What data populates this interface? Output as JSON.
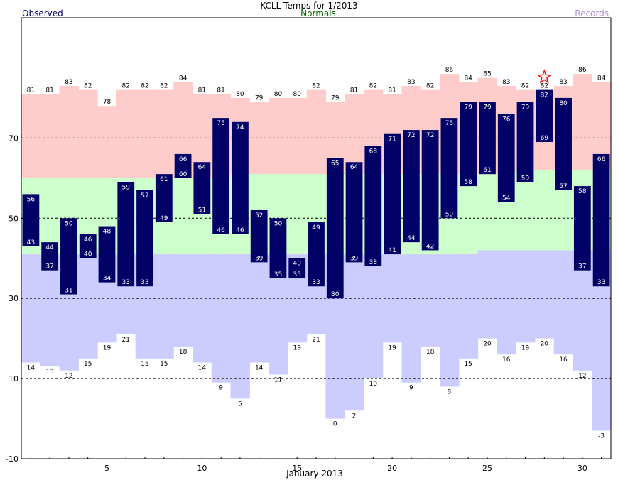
{
  "chart_data": {
    "type": "bar",
    "title": "KCLL Temps for 1/2013",
    "legend": {
      "observed": "Observed",
      "normals": "Normals",
      "records": "Records"
    },
    "xlabel": "January 2013",
    "ylabel": "",
    "xlim": [
      1,
      31
    ],
    "ylim": [
      -10,
      100
    ],
    "grid": true,
    "x_ticks": [
      5,
      10,
      15,
      20,
      25,
      30
    ],
    "y_ticks": [
      -10,
      10,
      30,
      50,
      70
    ],
    "colors": {
      "observed_bar": "#000066",
      "observed_label": "#ffffff",
      "normal_band": "#ccffcc",
      "record_high_band": "#ffcccc",
      "record_low_band": "#ccccff",
      "observed_text": "#000066",
      "normals_text": "#006600",
      "records_text": "#b08fd8",
      "marker": "#ff0000"
    },
    "days": [
      1,
      2,
      3,
      4,
      5,
      6,
      7,
      8,
      9,
      10,
      11,
      12,
      13,
      14,
      15,
      16,
      17,
      18,
      19,
      20,
      21,
      22,
      23,
      24,
      25,
      26,
      27,
      28,
      29,
      30,
      31
    ],
    "observed_high": [
      56,
      44,
      50,
      46,
      48,
      59,
      57,
      61,
      66,
      64,
      75,
      74,
      52,
      50,
      40,
      49,
      65,
      64,
      68,
      71,
      72,
      72,
      75,
      79,
      79,
      76,
      79,
      82,
      80,
      58,
      66
    ],
    "observed_low": [
      43,
      37,
      31,
      40,
      34,
      33,
      33,
      49,
      60,
      51,
      46,
      46,
      39,
      35,
      35,
      33,
      30,
      39,
      38,
      41,
      44,
      42,
      50,
      58,
      61,
      54,
      59,
      69,
      57,
      37,
      33
    ],
    "record_high": [
      81,
      81,
      83,
      82,
      78,
      82,
      82,
      82,
      84,
      81,
      81,
      80,
      79,
      80,
      80,
      82,
      79,
      81,
      82,
      81,
      83,
      82,
      86,
      84,
      85,
      83,
      82,
      82,
      83,
      86,
      84
    ],
    "record_low": [
      14,
      13,
      12,
      15,
      19,
      21,
      15,
      15,
      18,
      14,
      9,
      5,
      14,
      11,
      19,
      21,
      0,
      2,
      10,
      19,
      9,
      18,
      8,
      15,
      20,
      16,
      19,
      20,
      16,
      12,
      -3
    ],
    "normal_high": [
      60,
      60,
      60,
      60,
      60,
      60,
      60,
      60,
      60,
      60,
      60,
      61,
      61,
      61,
      61,
      61,
      61,
      61,
      61,
      61,
      61,
      61,
      61,
      61,
      61,
      61,
      62,
      62,
      62,
      62,
      62
    ],
    "normal_low": [
      41,
      41,
      41,
      41,
      41,
      41,
      41,
      41,
      41,
      41,
      41,
      41,
      41,
      41,
      41,
      41,
      41,
      41,
      41,
      41,
      41,
      41,
      41,
      41,
      42,
      42,
      42,
      42,
      42,
      42,
      42
    ],
    "record_marker_days": [
      28
    ]
  }
}
